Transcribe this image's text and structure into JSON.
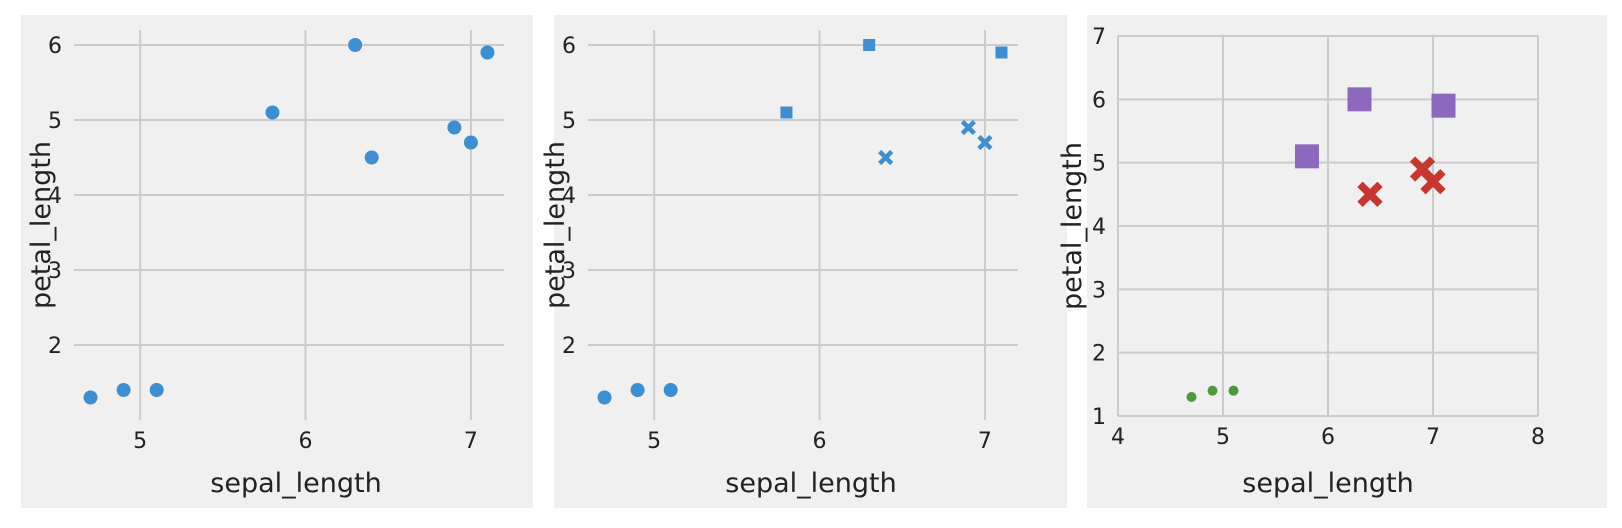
{
  "chart_data": [
    {
      "type": "scatter",
      "xlabel": "sepal_length",
      "ylabel": "petal_length",
      "xlim": [
        4.6,
        7.2
      ],
      "ylim": [
        1.0,
        6.2
      ],
      "xticks": [
        5,
        6,
        7
      ],
      "yticks": [
        2,
        3,
        4,
        5,
        6
      ],
      "grid": true,
      "series": [
        {
          "marker": "circle",
          "color": "#3d8fd1",
          "points": [
            {
              "x": 4.7,
              "y": 1.3
            },
            {
              "x": 4.9,
              "y": 1.4
            },
            {
              "x": 5.1,
              "y": 1.4
            },
            {
              "x": 5.8,
              "y": 5.1
            },
            {
              "x": 6.3,
              "y": 6.0
            },
            {
              "x": 6.4,
              "y": 4.5
            },
            {
              "x": 6.9,
              "y": 4.9
            },
            {
              "x": 7.0,
              "y": 4.7
            },
            {
              "x": 7.1,
              "y": 5.9
            }
          ]
        }
      ]
    },
    {
      "type": "scatter",
      "xlabel": "sepal_length",
      "ylabel": "petal_length",
      "xlim": [
        4.6,
        7.2
      ],
      "ylim": [
        1.0,
        6.2
      ],
      "xticks": [
        5,
        6,
        7
      ],
      "yticks": [
        2,
        3,
        4,
        5,
        6
      ],
      "grid": true,
      "series": [
        {
          "marker": "circle",
          "color": "#3d8fd1",
          "points": [
            {
              "x": 4.7,
              "y": 1.3
            },
            {
              "x": 4.9,
              "y": 1.4
            },
            {
              "x": 5.1,
              "y": 1.4
            }
          ]
        },
        {
          "marker": "x",
          "color": "#3d8fd1",
          "points": [
            {
              "x": 6.4,
              "y": 4.5
            },
            {
              "x": 6.9,
              "y": 4.9
            },
            {
              "x": 7.0,
              "y": 4.7
            }
          ]
        },
        {
          "marker": "square",
          "color": "#3d8fd1",
          "points": [
            {
              "x": 5.8,
              "y": 5.1
            },
            {
              "x": 6.3,
              "y": 6.0
            },
            {
              "x": 7.1,
              "y": 5.9
            }
          ]
        }
      ]
    },
    {
      "type": "scatter",
      "xlabel": "sepal_length",
      "ylabel": "petal_length",
      "xlim": [
        4,
        8
      ],
      "ylim": [
        1,
        7
      ],
      "xticks": [
        4,
        5,
        6,
        7,
        8
      ],
      "yticks": [
        1,
        2,
        3,
        4,
        5,
        6,
        7
      ],
      "grid": true,
      "series": [
        {
          "marker": "circle",
          "color": "#4e9a3a",
          "size": "small",
          "points": [
            {
              "x": 4.7,
              "y": 1.3
            },
            {
              "x": 4.9,
              "y": 1.4
            },
            {
              "x": 5.1,
              "y": 1.4
            }
          ]
        },
        {
          "marker": "x",
          "color": "#c8372d",
          "size": "medium",
          "points": [
            {
              "x": 6.4,
              "y": 4.5
            },
            {
              "x": 6.9,
              "y": 4.9
            },
            {
              "x": 7.0,
              "y": 4.7
            }
          ]
        },
        {
          "marker": "square",
          "color": "#8e68bf",
          "size": "large",
          "points": [
            {
              "x": 5.8,
              "y": 5.1
            },
            {
              "x": 6.3,
              "y": 6.0
            },
            {
              "x": 7.1,
              "y": 5.9
            }
          ]
        }
      ]
    }
  ]
}
